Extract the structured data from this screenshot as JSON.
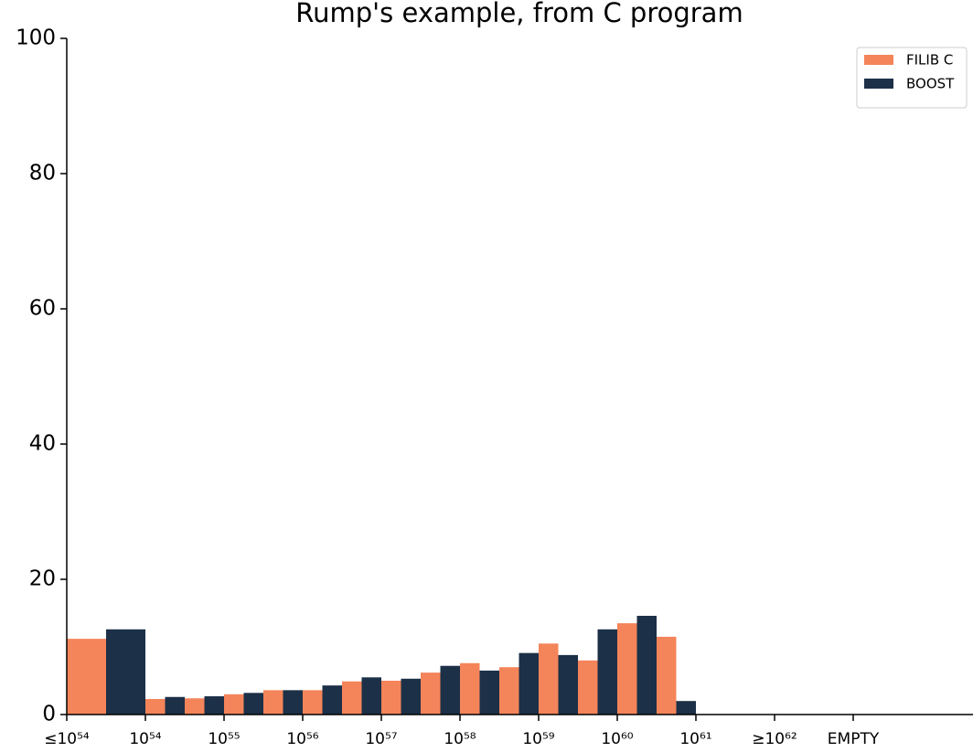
{
  "chart_data": {
    "type": "histogram",
    "title": "Rump's example, from C program",
    "bins": [
      0,
      1,
      1.5,
      2,
      2.5,
      3,
      3.5,
      4,
      4.5,
      5,
      5.5,
      6,
      6.5,
      7,
      7.5,
      8
    ],
    "series": [
      {
        "name": "FILIB C",
        "color": "#f4845a",
        "values": [
          11.2,
          2.3,
          2.4,
          3.0,
          3.6,
          3.6,
          4.9,
          5.0,
          6.2,
          7.6,
          7.0,
          10.5,
          8.0,
          13.5,
          11.5
        ]
      },
      {
        "name": "BOOST",
        "color": "#1c3047",
        "values": [
          12.6,
          2.6,
          2.7,
          3.2,
          3.6,
          4.3,
          5.5,
          5.3,
          7.2,
          6.5,
          9.1,
          8.8,
          12.6,
          14.6,
          2.0
        ]
      }
    ],
    "xlim": [
      0,
      11.5
    ],
    "xticks": [
      {
        "value": 0,
        "label": "≤10⁵⁴"
      },
      {
        "value": 1,
        "label": "10⁵⁴"
      },
      {
        "value": 2,
        "label": "10⁵⁵"
      },
      {
        "value": 3,
        "label": "10⁵⁶"
      },
      {
        "value": 4,
        "label": "10⁵⁷"
      },
      {
        "value": 5,
        "label": "10⁵⁸"
      },
      {
        "value": 6,
        "label": "10⁵⁹"
      },
      {
        "value": 7,
        "label": "10⁶⁰"
      },
      {
        "value": 8,
        "label": "10⁶¹"
      },
      {
        "value": 9,
        "label": "≥10⁶²"
      },
      {
        "value": 10,
        "label": "EMPTY"
      }
    ],
    "ylim": [
      0,
      100
    ],
    "yticks": [
      0,
      20,
      40,
      60,
      80,
      100
    ],
    "grid": false,
    "legend": "upper right"
  }
}
